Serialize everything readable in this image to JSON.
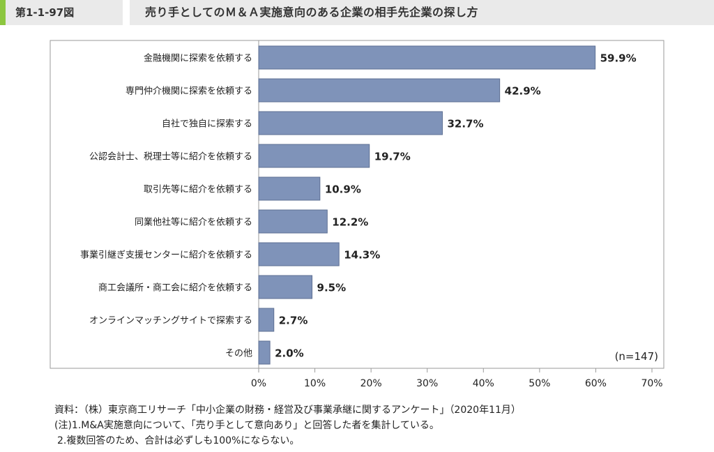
{
  "header": {
    "figure_number": "第1-1-97図",
    "title": "売り手としてのＭ＆Ａ実施意向のある企業の相手先企業の探し方"
  },
  "chart_data": {
    "type": "bar",
    "orientation": "horizontal",
    "categories": [
      "金融機関に探索を依頼する",
      "専門仲介機関に探索を依頼する",
      "自社で独自に探索する",
      "公認会計士、税理士等に紹介を依頼する",
      "取引先等に紹介を依頼する",
      "同業他社等に紹介を依頼する",
      "事業引継ぎ支援センターに紹介を依頼する",
      "商工会議所・商工会に紹介を依頼する",
      "オンラインマッチングサイトで探索する",
      "その他"
    ],
    "values": [
      59.9,
      42.9,
      32.7,
      19.7,
      10.9,
      12.2,
      14.3,
      9.5,
      2.7,
      2.0
    ],
    "value_labels": [
      "59.9%",
      "42.9%",
      "32.7%",
      "19.7%",
      "10.9%",
      "12.2%",
      "14.3%",
      "9.5%",
      "2.7%",
      "2.0%"
    ],
    "xlim": [
      0,
      70
    ],
    "x_ticks": [
      "0%",
      "10%",
      "20%",
      "30%",
      "40%",
      "50%",
      "60%",
      "70%"
    ],
    "sample_note": "(n=147)",
    "bar_color": "#7f93b9",
    "bar_stroke": "#5d6f93",
    "grid": false
  },
  "notes": {
    "source": "資料：（株）東京商工リサーチ「中小企業の財務・経営及び事業承継に関するアンケート」（2020年11月）",
    "note1": "(注)1.M&A実施意向について、「売り手として意向あり」と回答した者を集計している。",
    "note2": "2.複数回答のため、合計は必ずしも100%にならない。"
  }
}
